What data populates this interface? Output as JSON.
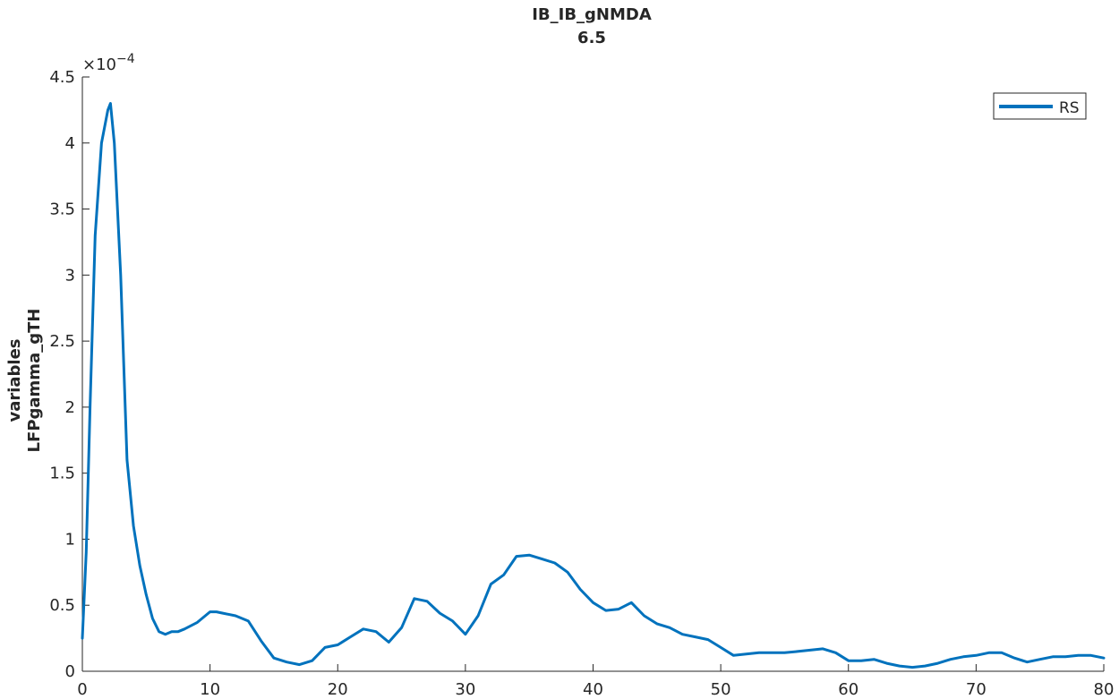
{
  "chart_data": {
    "type": "line",
    "title": [
      "IB_IB_gNMDA",
      "6.5"
    ],
    "xlabel": "",
    "ylabel": [
      "variables",
      "LFPgamma_gTH"
    ],
    "xlim": [
      0,
      80
    ],
    "ylim": [
      0,
      4.5
    ],
    "y_exponent_label": "×10",
    "y_exponent_power": "−4",
    "xticks": [
      "0",
      "10",
      "20",
      "30",
      "40",
      "50",
      "60",
      "70",
      "80"
    ],
    "yticks": [
      "0",
      "0.5",
      "1",
      "1.5",
      "2",
      "2.5",
      "3",
      "3.5",
      "4",
      "4.5"
    ],
    "grid": false,
    "legend_position": "top-right",
    "series": [
      {
        "name": "RS",
        "color": "#0072bd",
        "x": [
          0,
          0.3,
          0.6,
          1.0,
          1.5,
          2.0,
          2.2,
          2.5,
          3.0,
          3.5,
          4.0,
          4.5,
          5.0,
          5.5,
          6.0,
          6.5,
          7.0,
          7.5,
          8.0,
          9.0,
          10.0,
          10.5,
          11.0,
          12.0,
          13.0,
          14.0,
          15.0,
          16.0,
          17.0,
          18.0,
          19.0,
          20.0,
          21.0,
          22.0,
          23.0,
          24.0,
          25.0,
          26.0,
          27.0,
          28.0,
          29.0,
          30.0,
          31.0,
          32.0,
          33.0,
          34.0,
          35.0,
          36.0,
          37.0,
          38.0,
          39.0,
          40.0,
          41.0,
          42.0,
          43.0,
          44.0,
          45.0,
          46.0,
          47.0,
          48.0,
          49.0,
          50.0,
          51.0,
          52.0,
          53.0,
          54.0,
          55.0,
          56.0,
          57.0,
          58.0,
          59.0,
          60.0,
          61.0,
          62.0,
          63.0,
          64.0,
          65.0,
          66.0,
          67.0,
          68.0,
          69.0,
          70.0,
          71.0,
          72.0,
          73.0,
          74.0,
          75.0,
          76.0,
          77.0,
          78.0,
          79.0,
          80.0
        ],
        "values": [
          0.25,
          0.9,
          2.0,
          3.3,
          4.0,
          4.25,
          4.3,
          4.0,
          3.0,
          1.6,
          1.1,
          0.8,
          0.58,
          0.4,
          0.3,
          0.28,
          0.3,
          0.3,
          0.32,
          0.37,
          0.45,
          0.45,
          0.44,
          0.42,
          0.38,
          0.23,
          0.1,
          0.07,
          0.05,
          0.08,
          0.18,
          0.2,
          0.26,
          0.32,
          0.3,
          0.22,
          0.33,
          0.55,
          0.53,
          0.44,
          0.38,
          0.28,
          0.42,
          0.66,
          0.73,
          0.87,
          0.88,
          0.85,
          0.82,
          0.75,
          0.62,
          0.52,
          0.46,
          0.47,
          0.52,
          0.42,
          0.36,
          0.33,
          0.28,
          0.26,
          0.24,
          0.18,
          0.12,
          0.13,
          0.14,
          0.14,
          0.14,
          0.15,
          0.16,
          0.17,
          0.14,
          0.08,
          0.08,
          0.09,
          0.06,
          0.04,
          0.03,
          0.04,
          0.06,
          0.09,
          0.11,
          0.12,
          0.14,
          0.14,
          0.1,
          0.07,
          0.09,
          0.11,
          0.11,
          0.12,
          0.12,
          0.1
        ]
      }
    ]
  }
}
